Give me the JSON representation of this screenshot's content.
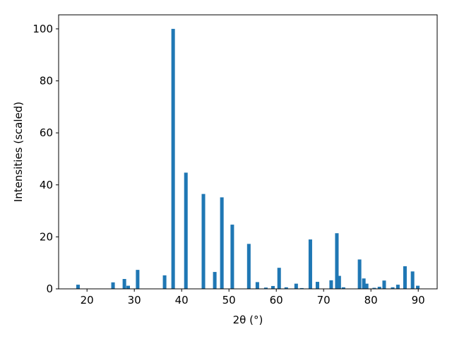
{
  "chart_data": {
    "type": "bar",
    "xlabel": "2θ (°)",
    "ylabel": "Intensities (scaled)",
    "x": [
      18.1,
      25.5,
      27.9,
      28.7,
      30.7,
      36.4,
      38.2,
      40.9,
      44.6,
      47.0,
      48.5,
      50.7,
      54.2,
      56.0,
      57.8,
      59.3,
      60.6,
      62.1,
      64.2,
      65.4,
      67.2,
      68.7,
      71.6,
      72.8,
      73.3,
      74.2,
      77.6,
      78.5,
      79.1,
      80.7,
      81.8,
      82.8,
      84.6,
      85.7,
      87.2,
      88.8,
      89.9
    ],
    "values": [
      1.6,
      2.5,
      3.8,
      1.2,
      7.3,
      5.2,
      100,
      44.7,
      36.5,
      6.5,
      35.2,
      24.7,
      17.3,
      2.6,
      0.5,
      1.1,
      8.1,
      0.6,
      2.0,
      0.3,
      19.0,
      2.7,
      3.3,
      21.4,
      5.0,
      0.6,
      11.3,
      4.0,
      2.0,
      0.4,
      0.8,
      3.2,
      0.6,
      1.6,
      8.7,
      6.7,
      1.2
    ],
    "color": "#1f77b4",
    "xlim": [
      14,
      94
    ],
    "xticks": [
      20,
      30,
      40,
      50,
      60,
      70,
      80,
      90
    ],
    "ylim": [
      0,
      105.4
    ],
    "yticks": [
      0,
      20,
      40,
      60,
      80,
      100
    ],
    "grid": false
  }
}
